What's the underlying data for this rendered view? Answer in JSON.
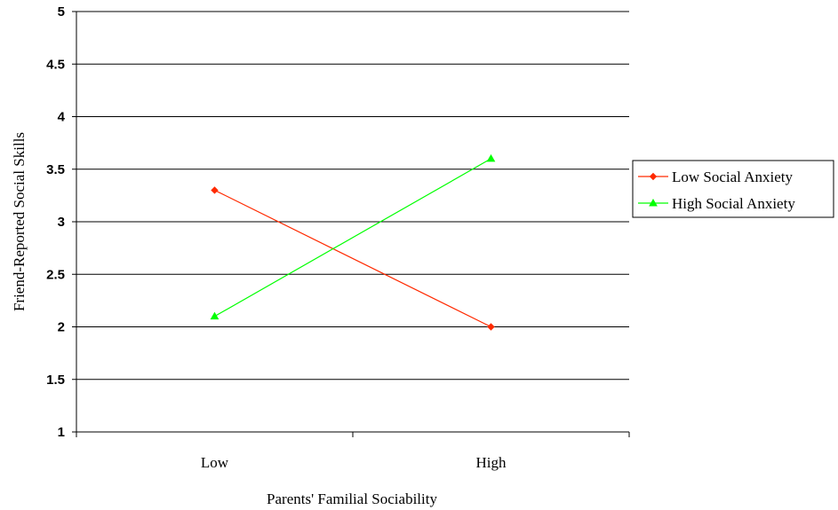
{
  "chart_data": {
    "type": "line",
    "title": "",
    "xlabel": "Parents' Familial Sociability",
    "ylabel": "Friend-Reported Social Skills",
    "categories": [
      "Low",
      "High"
    ],
    "ylim": [
      1,
      5
    ],
    "yticks": [
      "1",
      "1.5",
      "2",
      "2.5",
      "3",
      "3.5",
      "4",
      "4.5",
      "5"
    ],
    "grid": true,
    "legend_position": "right",
    "series": [
      {
        "name": "Low Social Anxiety",
        "values": [
          3.3,
          2.0
        ],
        "color": "#ff2a00",
        "marker": "diamond"
      },
      {
        "name": "High Social Anxiety",
        "values": [
          2.1,
          3.6
        ],
        "color": "#00ff00",
        "marker": "triangle"
      }
    ]
  }
}
